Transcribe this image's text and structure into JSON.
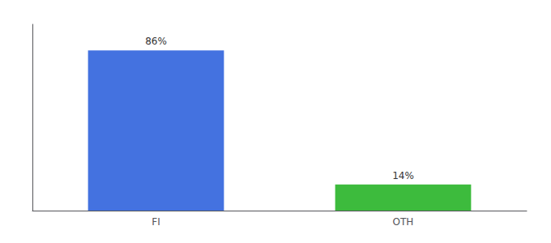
{
  "chart_data": {
    "type": "bar",
    "categories": [
      "FI",
      "OTH"
    ],
    "values": [
      86,
      14
    ],
    "value_labels": [
      "86%",
      "14%"
    ],
    "colors": [
      "#4472e0",
      "#3dbb3d"
    ],
    "ylim": [
      0,
      100
    ],
    "data_labels": true,
    "tick_labels": "x",
    "grid": false
  }
}
